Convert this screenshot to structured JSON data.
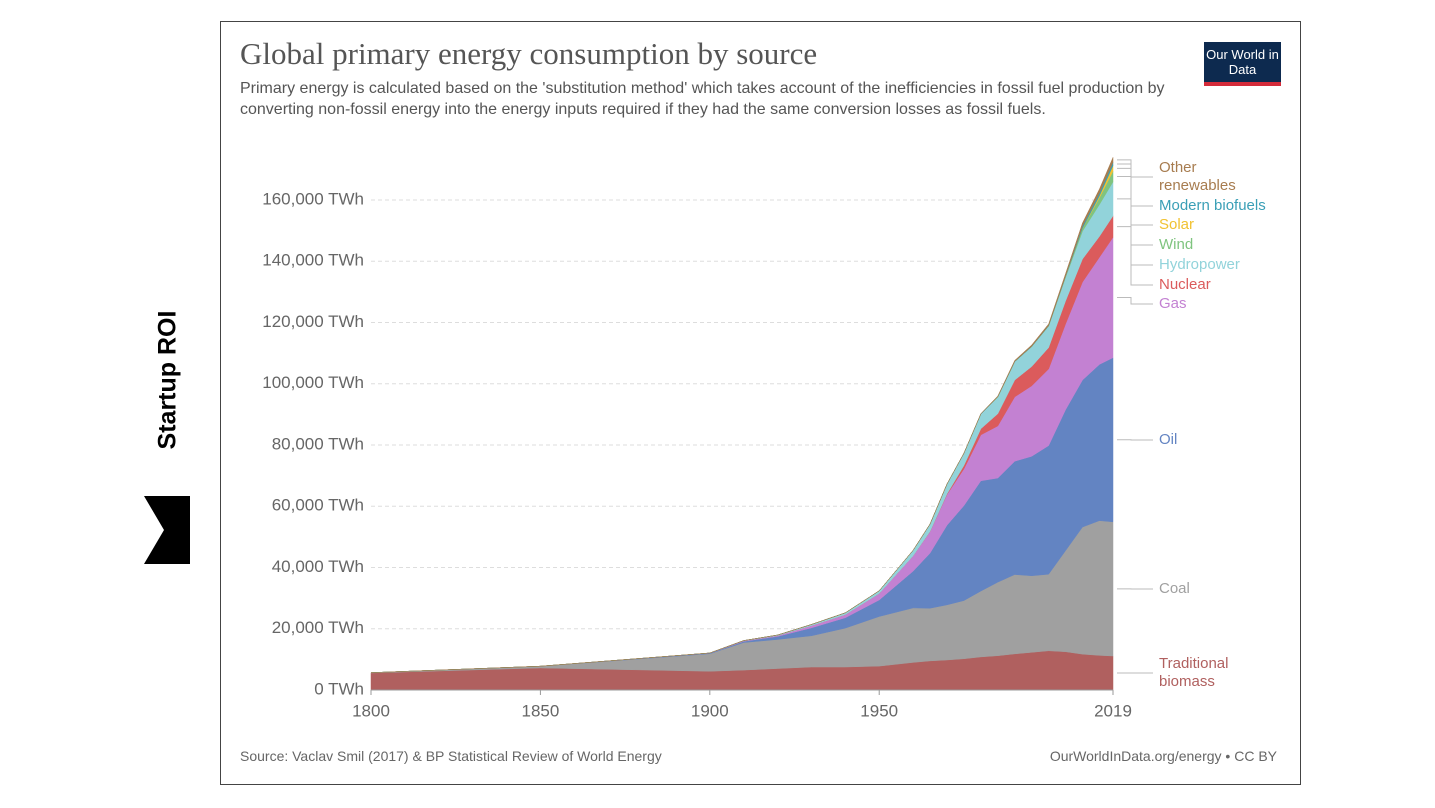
{
  "brand": "Startup ROI",
  "chart_data": {
    "type": "stacked-area",
    "title": "Global primary energy consumption by source",
    "subtitle": "Primary energy is calculated based on the 'substitution method' which takes account of the inefficiencies in fossil fuel production by converting non-fossil energy into the energy inputs required if they had the same conversion losses as fossil fuels.",
    "logo": "Our World in Data",
    "source": "Source: Vaclav Smil (2017) & BP Statistical Review of World Energy",
    "credit": "OurWorldInData.org/energy • CC BY",
    "x": [
      1800,
      1850,
      1900,
      1910,
      1920,
      1930,
      1940,
      1950,
      1960,
      1965,
      1970,
      1975,
      1980,
      1985,
      1990,
      1995,
      2000,
      2005,
      2010,
      2015,
      2019
    ],
    "xlim": [
      1800,
      2019
    ],
    "xticks": [
      1800,
      1850,
      1900,
      1950,
      2019
    ],
    "ylim": [
      0,
      175000
    ],
    "yticks": [
      {
        "value": 0,
        "label": "0 TWh"
      },
      {
        "value": 20000,
        "label": "20,000 TWh"
      },
      {
        "value": 40000,
        "label": "40,000 TWh"
      },
      {
        "value": 60000,
        "label": "60,000 TWh"
      },
      {
        "value": 80000,
        "label": "80,000 TWh"
      },
      {
        "value": 100000,
        "label": "100,000 TWh"
      },
      {
        "value": 120000,
        "label": "120,000 TWh"
      },
      {
        "value": 140000,
        "label": "140,000 TWh"
      },
      {
        "value": 160000,
        "label": "160,000 TWh"
      }
    ],
    "grid": true,
    "series": [
      {
        "name": "Traditional biomass",
        "color": "#b0605f",
        "values": [
          5560,
          7200,
          6110,
          6500,
          7000,
          7500,
          7500,
          7800,
          9000,
          9500,
          9800,
          10200,
          10800,
          11200,
          11800,
          12300,
          12800,
          12500,
          11700,
          11300,
          11100
        ]
      },
      {
        "name": "Coal",
        "color": "#a0a0a0",
        "values": [
          97,
          570,
          5730,
          9000,
          9500,
          10200,
          12700,
          16200,
          17800,
          17200,
          18000,
          19000,
          21500,
          24000,
          25900,
          25000,
          25000,
          33000,
          41500,
          44000,
          43800
        ]
      },
      {
        "name": "Oil",
        "color": "#6384c2",
        "values": [
          0,
          0,
          180,
          380,
          1000,
          2600,
          3400,
          5400,
          12000,
          18000,
          26000,
          31000,
          36000,
          34000,
          37000,
          39000,
          42000,
          46000,
          48000,
          51000,
          53600
        ]
      },
      {
        "name": "Gas",
        "color": "#c381d2",
        "values": [
          0,
          0,
          64,
          160,
          250,
          700,
          1000,
          2100,
          5000,
          7000,
          10000,
          12000,
          15000,
          17000,
          21000,
          23000,
          25000,
          28000,
          32000,
          35000,
          39300
        ]
      },
      {
        "name": "Nuclear",
        "color": "#db5b5c",
        "values": [
          0,
          0,
          0,
          0,
          0,
          0,
          0,
          0,
          0,
          70,
          230,
          1100,
          2000,
          4000,
          5500,
          6300,
          7000,
          7500,
          7500,
          6800,
          7000
        ]
      },
      {
        "name": "Hydropower",
        "color": "#92d3da",
        "values": [
          0,
          0,
          0,
          100,
          200,
          400,
          600,
          900,
          1800,
          2400,
          3200,
          4000,
          4800,
          5500,
          6000,
          6500,
          7000,
          7700,
          9100,
          10400,
          11100
        ]
      },
      {
        "name": "Wind",
        "color": "#7fc47f",
        "values": [
          0,
          0,
          0,
          0,
          0,
          0,
          0,
          0,
          0,
          0,
          0,
          0,
          0,
          0,
          10,
          20,
          80,
          270,
          900,
          2200,
          3500
        ]
      },
      {
        "name": "Solar",
        "color": "#f1c232",
        "values": [
          0,
          0,
          0,
          0,
          0,
          0,
          0,
          0,
          0,
          0,
          0,
          0,
          0,
          0,
          0,
          0,
          0,
          10,
          90,
          660,
          1800
        ]
      },
      {
        "name": "Modern biofuels",
        "color": "#3a9fb6",
        "values": [
          0,
          0,
          0,
          0,
          0,
          0,
          0,
          0,
          0,
          0,
          0,
          0,
          50,
          80,
          100,
          120,
          130,
          250,
          700,
          900,
          1100
        ]
      },
      {
        "name": "Other renewables",
        "color": "#a77c4f",
        "values": [
          0,
          0,
          0,
          0,
          0,
          0,
          0,
          0,
          0,
          0,
          0,
          0,
          100,
          200,
          300,
          400,
          500,
          700,
          1000,
          1300,
          1600
        ]
      }
    ]
  }
}
